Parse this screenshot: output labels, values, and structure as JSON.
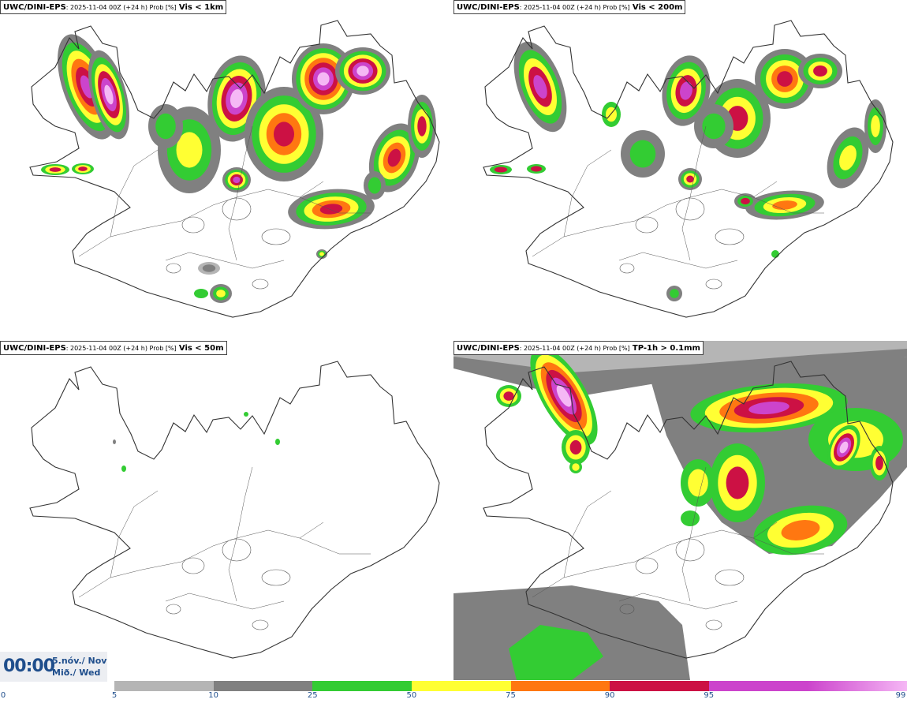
{
  "colors": {
    "coast": "#333333",
    "roads": "#555555",
    "p5": "#b5b5b5",
    "p10": "#808080",
    "p25": "#33cc33",
    "p50": "#ffff33",
    "p75": "#ff7711",
    "p90": "#cc1144",
    "p95": "#cc44cc",
    "p99": "#f5b8f5"
  },
  "panels": [
    {
      "model": "UWC/DINI-EPS",
      "meta": ": 2025-11-04 00Z (+24 h) Prob [%]",
      "variable": "Vis < 1km"
    },
    {
      "model": "UWC/DINI-EPS",
      "meta": ": 2025-11-04 00Z (+24 h) Prob [%]",
      "variable": "Vis < 200m"
    },
    {
      "model": "UWC/DINI-EPS",
      "meta": ": 2025-11-04 00Z (+24 h) Prob [%]",
      "variable": "Vis < 50m"
    },
    {
      "model": "UWC/DINI-EPS",
      "meta": ": 2025-11-04 00Z (+24 h) Prob [%]",
      "variable": "TP-1h > 0.1mm"
    }
  ],
  "time": {
    "clock": "00:00",
    "date_line1": "5.nóv./ Nov",
    "date_line2": "Mið./ Wed"
  },
  "colorbar": {
    "labels": [
      "0",
      "5",
      "10",
      "25",
      "50",
      "75",
      "90",
      "95",
      "99"
    ],
    "segments": [
      "#b5b5b5",
      "#808080",
      "#33cc33",
      "#ffff33",
      "#ff7711",
      "#cc1144",
      "#cc44cc",
      "#f5b8f5"
    ]
  }
}
